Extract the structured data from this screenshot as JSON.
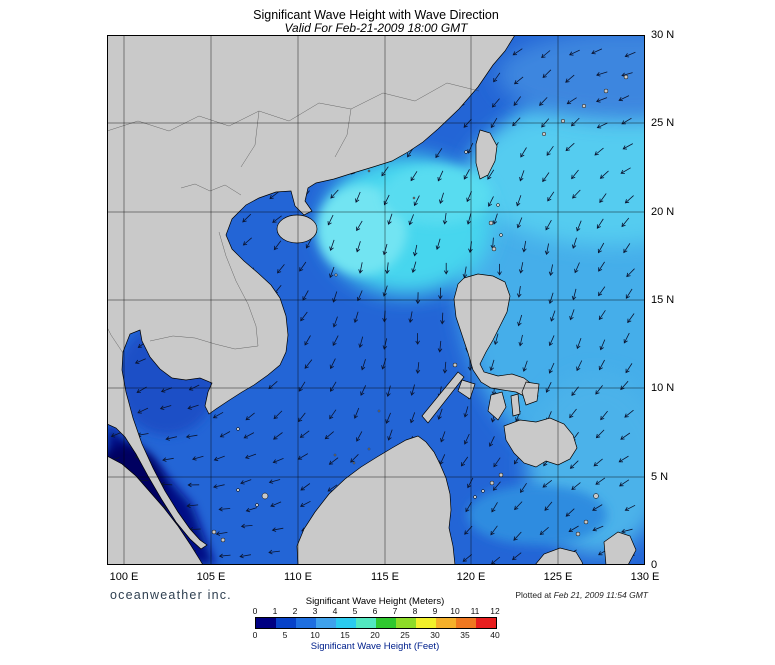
{
  "header": {
    "title": "Significant Wave Height with Wave Direction",
    "subtitle": "Valid For Feb-21-2009 18:00 GMT"
  },
  "map": {
    "x_axis_labels": [
      "100 E",
      "105 E",
      "110 E",
      "115 E",
      "120 E",
      "125 E",
      "130 E"
    ],
    "y_axis_labels": [
      "30 N",
      "25 N",
      "20 N",
      "15 N",
      "10 N",
      "5 N",
      "0"
    ]
  },
  "footer": {
    "brand": "oceanweather inc.",
    "plotted_label": "Plotted at ",
    "plotted_value": "Feb 21, 2009 11:54 GMT"
  },
  "legend": {
    "title_meters": "Significant Wave Height (Meters)",
    "title_feet": "Significant Wave Height (Feet)",
    "meters_ticks": [
      "0",
      "1",
      "2",
      "3",
      "4",
      "5",
      "6",
      "7",
      "8",
      "9",
      "10",
      "11",
      "12"
    ],
    "feet_ticks": [
      "0",
      "5",
      "10",
      "15",
      "20",
      "25",
      "30",
      "35",
      "40"
    ],
    "colors": [
      "#000082",
      "#0742C8",
      "#1E6FE0",
      "#3FA2EC",
      "#2BCBEF",
      "#52E8C0",
      "#2FC82F",
      "#8EDC28",
      "#F2F02A",
      "#F5B02A",
      "#F07820",
      "#E81E1E"
    ]
  }
}
